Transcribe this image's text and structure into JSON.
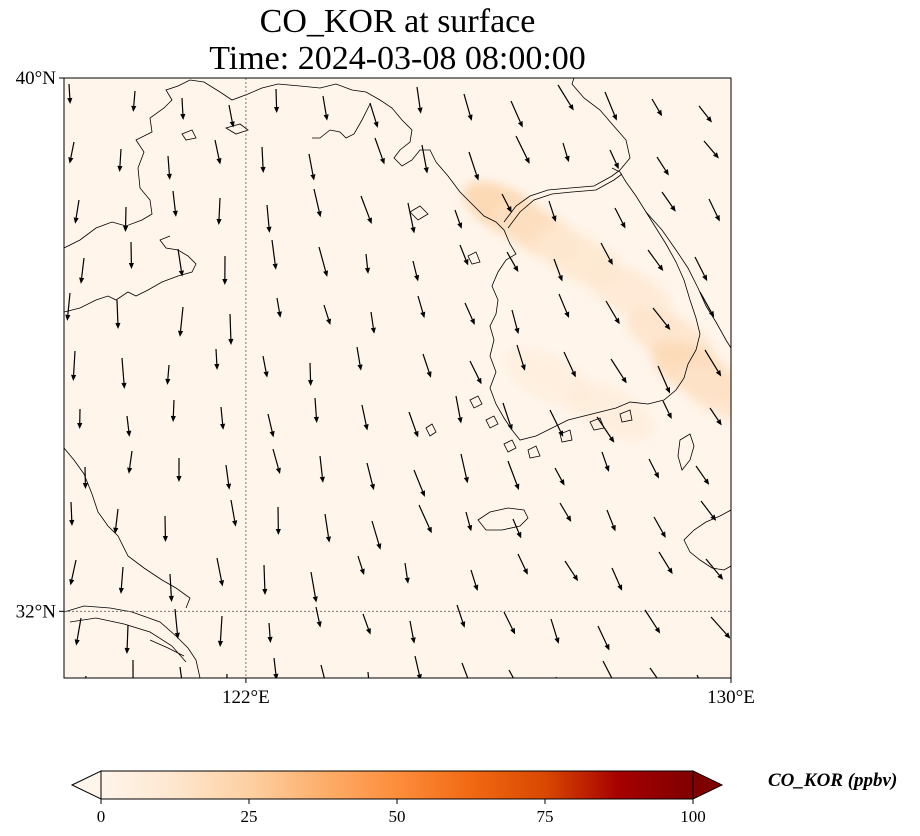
{
  "title": {
    "line1": "CO_KOR at surface",
    "line2": "Time: 2024-03-08 08:00:00"
  },
  "map": {
    "lon_range": [
      119,
      130
    ],
    "lat_range": [
      31,
      40
    ],
    "lat_ticks": [
      {
        "value": 40,
        "label": "40°N"
      },
      {
        "value": 32,
        "label": "32°N"
      }
    ],
    "lon_ticks": [
      {
        "value": 122,
        "label": "122°E"
      },
      {
        "value": 130,
        "label": "130°E"
      }
    ],
    "gridlines": true,
    "background_color": "#fff5eb"
  },
  "colorbar": {
    "label": "CO_KOR (ppbv)",
    "min": 0,
    "max": 100,
    "ticks": [
      "0",
      "25",
      "50",
      "75",
      "100"
    ],
    "extend": "both",
    "colormap": [
      "#fff5eb",
      "#fee6ce",
      "#fdd0a2",
      "#fdae6b",
      "#fd8d3c",
      "#f16913",
      "#d94801",
      "#a60000",
      "#7f0000"
    ]
  },
  "plume": {
    "description_values_ppbv": [
      {
        "lon": 126.3,
        "lat": 38.0,
        "value": 22
      },
      {
        "lon": 126.8,
        "lat": 37.7,
        "value": 16
      },
      {
        "lon": 127.5,
        "lat": 37.3,
        "value": 12
      },
      {
        "lon": 128.3,
        "lat": 36.8,
        "value": 10
      },
      {
        "lon": 129.0,
        "lat": 36.1,
        "value": 14
      },
      {
        "lon": 129.4,
        "lat": 35.6,
        "value": 20
      },
      {
        "lon": 129.8,
        "lat": 35.3,
        "value": 14
      },
      {
        "lon": 127.0,
        "lat": 35.5,
        "value": 6
      },
      {
        "lon": 128.0,
        "lat": 35.0,
        "value": 7
      }
    ]
  }
}
